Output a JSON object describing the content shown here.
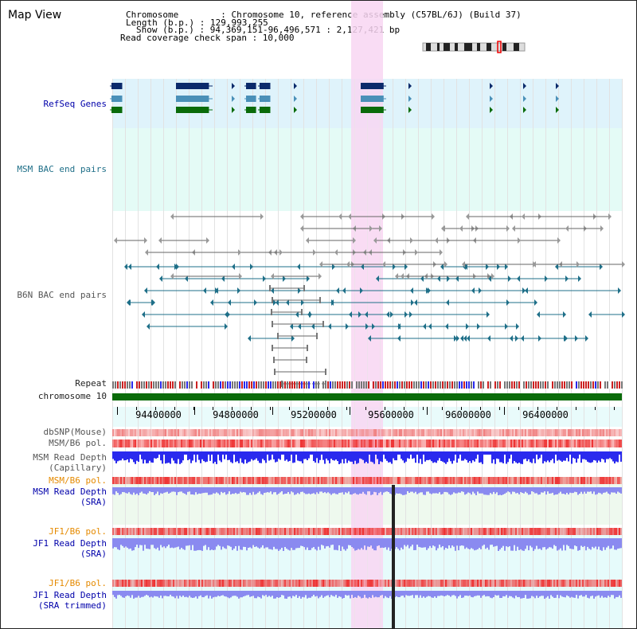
{
  "title": "Map View",
  "header": {
    "chromosome": "Chromosome        : Chromosome 10, reference assembly (C57BL/6J) (Build 37)",
    "length": "Length (b.p.) : 129,993,255",
    "show": "Show (b.p.) : 94,369,151-96,496,571 : 2,127,421 bp",
    "coverage": "Read coverage check span : 10,000"
  },
  "tracks": {
    "refseq": "RefSeq Genes",
    "msm_bac": "MSM BAC end pairs",
    "b6n_bac": "B6N BAC end pairs",
    "repeat": "Repeat",
    "chromosome": "chromosome 10",
    "dbsnp": "dbSNP(Mouse)",
    "msm_b6_pol_1": "MSM/B6 pol.",
    "msm_read_depth_cap_1": "MSM Read Depth",
    "msm_read_depth_cap_2": "(Capillary)",
    "msm_b6_pol_2": "MSM/B6 pol.",
    "msm_read_depth_sra_1": "MSM Read Depth",
    "msm_read_depth_sra_2": "(SRA)",
    "jf1_b6_pol_1": "JF1/B6 pol.",
    "jf1_read_depth_sra_1": "JF1 Read Depth",
    "jf1_read_depth_sra_2": "(SRA)",
    "jf1_b6_pol_2": "JF1/B6 pol.",
    "jf1_read_depth_trim_1": "JF1 Read Depth",
    "jf1_read_depth_trim_2": "(SRA trimmed)"
  },
  "axis": {
    "ticks": [
      "94400000",
      "94800000",
      "95200000",
      "95600000",
      "96000000",
      "96400000"
    ]
  },
  "colors": {
    "refseq_bg": "#dff3fb",
    "msm_bac_bg": "#e4fbf6",
    "highlight": "#f8d6f2",
    "chromosome_bar": "#0a6b0a",
    "gene_dark": "#0b2a6b",
    "gene_mid": "#4a90b8",
    "gene_green": "#0a6b0a",
    "msm_pair": "#1e6f88",
    "b6n_pair": "#666666",
    "snp": "#f08080",
    "pol": "#ee3333",
    "depth": "#2a2aee",
    "depth_sra": "#8a8af0"
  }
}
